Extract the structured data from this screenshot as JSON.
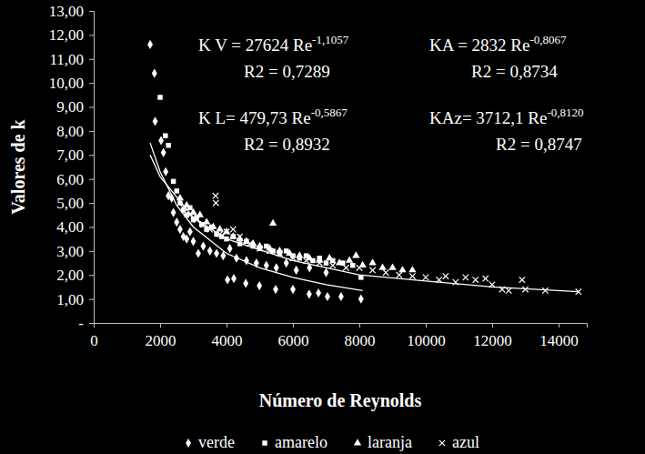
{
  "chart_data": {
    "type": "scatter",
    "x_label": "Número de Reynolds",
    "y_label": "Valores de k",
    "xlim": [
      0,
      14850
    ],
    "ylim": [
      0,
      13
    ],
    "xticks": [
      0,
      2000,
      4000,
      6000,
      8000,
      10000,
      12000,
      14000
    ],
    "yticks": [
      {
        "value": 0,
        "label": "-"
      },
      {
        "value": 1,
        "label": "1,00"
      },
      {
        "value": 2,
        "label": "2,00"
      },
      {
        "value": 3,
        "label": "3,00"
      },
      {
        "value": 4,
        "label": "4,00"
      },
      {
        "value": 5,
        "label": "5,00"
      },
      {
        "value": 6,
        "label": "6,00"
      },
      {
        "value": 7,
        "label": "7,00"
      },
      {
        "value": 8,
        "label": "8,00"
      },
      {
        "value": 9,
        "label": "9,00"
      },
      {
        "value": 10,
        "label": "10,00"
      },
      {
        "value": 11,
        "label": "11,00"
      },
      {
        "value": 12,
        "label": "12,00"
      },
      {
        "value": 13,
        "label": "13,00"
      }
    ],
    "grid": false,
    "legend": "bottom",
    "annotations": [
      {
        "text": "K V = 27624 Re",
        "superscript": "-1,1057"
      },
      {
        "text": "R2 = 0,7289"
      },
      {
        "text": "K L= 479,73 Re",
        "superscript": "-0,5867"
      },
      {
        "text": "R2 = 0,8932"
      },
      {
        "text": "KA = 2832 Re",
        "superscript": "-0,8067"
      },
      {
        "text": "R2 = 0,8734"
      },
      {
        "text": "KAz= 3712,1 Re",
        "superscript": "-0,8120"
      },
      {
        "text": "R2 = 0,8747"
      }
    ],
    "series": [
      {
        "name": "verde",
        "color": "#ffffff",
        "marker": "diamond",
        "x": [
          1700,
          1830,
          1850,
          2030,
          2100,
          2170,
          2250,
          2350,
          2400,
          2500,
          2600,
          2700,
          2800,
          2900,
          3000,
          3150,
          3300,
          3500,
          3700,
          3900,
          4100,
          4300,
          4600,
          4900,
          5200,
          5500,
          5800,
          6100,
          6500,
          7000,
          4030,
          4220,
          4580,
          4990,
          5480,
          6000,
          6490,
          6770,
          7040,
          7450,
          8050
        ],
        "values": [
          11.6,
          10.4,
          8.4,
          7.6,
          7.1,
          6.3,
          5.3,
          5.2,
          4.6,
          4.2,
          3.9,
          3.6,
          3.5,
          3.8,
          3.4,
          2.9,
          3.2,
          3.0,
          2.9,
          2.8,
          3.1,
          2.7,
          2.6,
          2.5,
          2.4,
          2.3,
          2.5,
          2.2,
          2.3,
          2.1,
          1.8,
          1.85,
          1.65,
          1.55,
          1.4,
          1.4,
          1.2,
          1.25,
          1.1,
          1.1,
          1.0
        ]
      },
      {
        "name": "amarelo",
        "color": "#ffffff",
        "marker": "square",
        "x": [
          2000,
          2160,
          2250,
          2400,
          2500,
          2600,
          2700,
          2800,
          2900,
          3000,
          3100,
          3250,
          3400,
          3550,
          3700,
          3850,
          4000,
          4200,
          4400,
          4600,
          4800,
          5000,
          5200,
          5400,
          5600,
          5800,
          6000,
          6200,
          6400,
          6600,
          6800,
          7000,
          7200,
          7500,
          7800,
          8050
        ],
        "values": [
          9.4,
          7.8,
          7.4,
          5.9,
          5.5,
          5.0,
          4.7,
          4.5,
          4.8,
          4.3,
          4.4,
          4.1,
          3.9,
          4.0,
          3.7,
          3.6,
          3.5,
          3.6,
          3.3,
          3.4,
          3.2,
          3.1,
          3.2,
          3.0,
          2.9,
          3.0,
          2.8,
          2.7,
          2.8,
          2.6,
          2.7,
          2.5,
          2.6,
          2.5,
          2.4,
          1.9
        ]
      },
      {
        "name": "laranja",
        "color": "#ffffff",
        "marker": "triangle",
        "x": [
          2600,
          2800,
          3000,
          3200,
          3400,
          3600,
          3800,
          4000,
          4200,
          4400,
          4600,
          4800,
          5000,
          5300,
          5400,
          5600,
          5900,
          6200,
          6500,
          6800,
          7100,
          7400,
          7700,
          7900,
          8100,
          8400,
          8700,
          9000,
          9300,
          9600
        ],
        "values": [
          5.2,
          4.9,
          4.6,
          4.5,
          4.2,
          4.0,
          3.9,
          3.8,
          3.6,
          3.5,
          3.4,
          3.3,
          3.2,
          3.1,
          4.15,
          3.0,
          2.9,
          2.8,
          2.7,
          2.6,
          2.7,
          2.5,
          2.6,
          2.8,
          2.4,
          2.5,
          2.3,
          2.3,
          2.2,
          2.2
        ]
      },
      {
        "name": "azul",
        "color": "#ffffff",
        "marker": "x",
        "x": [
          2700,
          2900,
          3100,
          3300,
          3500,
          3670,
          3680,
          3800,
          4000,
          4200,
          4400,
          4700,
          5000,
          5300,
          5600,
          6000,
          6400,
          6800,
          7200,
          7600,
          8000,
          8400,
          8800,
          9200,
          9600,
          10000,
          10400,
          10600,
          10900,
          11200,
          11500,
          11800,
          12000,
          12300,
          12500,
          12900,
          13000,
          13600,
          14600
        ],
        "values": [
          4.8,
          4.5,
          4.3,
          4.1,
          3.9,
          5.3,
          5.0,
          3.7,
          3.8,
          3.9,
          3.6,
          3.3,
          3.1,
          3.0,
          2.9,
          2.7,
          2.6,
          2.5,
          2.4,
          2.3,
          2.3,
          2.2,
          2.1,
          2.0,
          1.95,
          1.9,
          1.8,
          1.95,
          1.7,
          1.9,
          1.8,
          1.85,
          1.6,
          1.4,
          1.35,
          1.8,
          1.4,
          1.35,
          1.3
        ]
      },
      {
        "type": "line",
        "color": "#ffffff",
        "line_style": "solid",
        "x": [
          1700,
          2000,
          2500,
          3000,
          4000,
          5000,
          6000,
          7000,
          8100
        ],
        "values": [
          7.5,
          6.3,
          4.9,
          4.0,
          2.9,
          2.3,
          1.9,
          1.6,
          1.35
        ]
      },
      {
        "type": "line",
        "color": "#ffffff",
        "line_style": "solid",
        "x": [
          1700,
          2000,
          3000,
          4000,
          6000,
          8000,
          10000,
          12000,
          14600
        ],
        "values": [
          7.0,
          6.1,
          4.4,
          3.5,
          2.6,
          2.0,
          1.75,
          1.5,
          1.3
        ]
      }
    ]
  }
}
